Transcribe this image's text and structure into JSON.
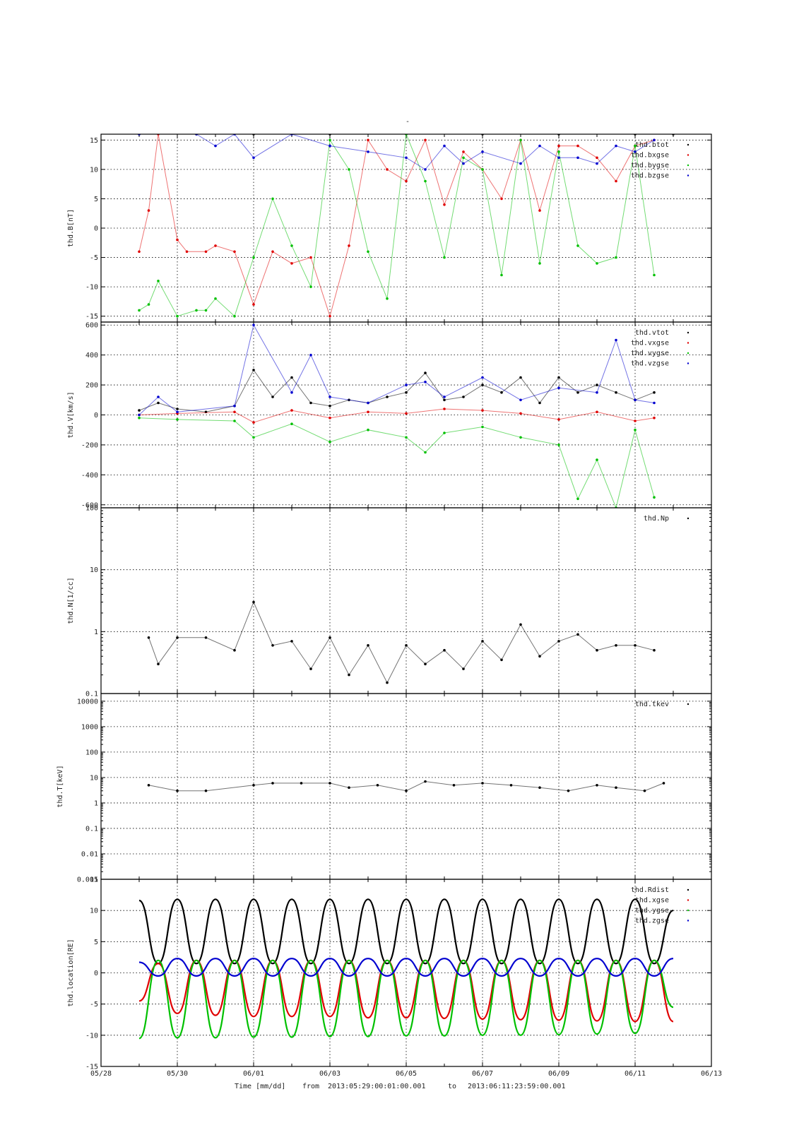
{
  "figure": {
    "title": "-",
    "footer": {
      "xlabel": "Time [mm/dd]",
      "from_label": "from",
      "from_value": "2013:05:29:00:01:00.001",
      "to_label": "to",
      "to_value": "2013:06:11:23:59:00.001"
    }
  },
  "chart_data": [
    {
      "type": "scatter",
      "ylabel": "thd.B[nT]",
      "xlim": [
        "05/28",
        "06/13"
      ],
      "ylim": [
        -16,
        16
      ],
      "yscale": "linear",
      "grid": true,
      "legend_position": "top-right",
      "x_ticks": [
        "05/28",
        "05/30",
        "06/01",
        "06/03",
        "06/05",
        "06/07",
        "06/09",
        "06/11",
        "06/13"
      ],
      "y_ticks": [
        -15,
        -10,
        -5,
        0,
        5,
        10,
        15
      ],
      "series": [
        {
          "name": "thd.btot",
          "color": "#000000",
          "x": [
            "05/29 00:00",
            "05/30 12:00",
            "06/01 00:00",
            "06/03 00:00",
            "06/05 00:00",
            "06/07 00:00",
            "06/09 00:00",
            "06/11 00:00",
            "06/12 00:00"
          ],
          "y": [
            16,
            16,
            16,
            16,
            16,
            16,
            16,
            16,
            16
          ]
        },
        {
          "name": "thd.bxgse",
          "color": "#e00000",
          "x": [
            "05/29 00:00",
            "05/29 06:00",
            "05/29 12:00",
            "05/30 00:00",
            "05/30 06:00",
            "05/30 18:00",
            "05/31 00:00",
            "05/31 12:00",
            "06/01 00:00",
            "06/01 12:00",
            "06/02 00:00",
            "06/02 12:00",
            "06/03 00:00",
            "06/03 12:00",
            "06/04 00:00",
            "06/04 12:00",
            "06/05 00:00",
            "06/05 12:00",
            "06/06 00:00",
            "06/06 12:00",
            "06/07 00:00",
            "06/07 12:00",
            "06/08 00:00",
            "06/08 12:00",
            "06/09 00:00",
            "06/09 12:00",
            "06/10 00:00",
            "06/10 12:00",
            "06/11 00:00",
            "06/11 12:00"
          ],
          "y": [
            -4,
            3,
            16,
            -2,
            -4,
            -4,
            -3,
            -4,
            -13,
            -4,
            -6,
            -5,
            -15,
            -3,
            15,
            10,
            8,
            15,
            4,
            13,
            10,
            5,
            15,
            3,
            14,
            14,
            12,
            8,
            14,
            15
          ]
        },
        {
          "name": "thd.bygse",
          "color": "#00c000",
          "x": [
            "05/29 00:00",
            "05/29 06:00",
            "05/29 12:00",
            "05/30 00:00",
            "05/30 12:00",
            "05/30 18:00",
            "05/31 00:00",
            "05/31 12:00",
            "06/01 00:00",
            "06/01 12:00",
            "06/02 00:00",
            "06/02 12:00",
            "06/03 00:00",
            "06/03 12:00",
            "06/04 00:00",
            "06/04 12:00",
            "06/05 00:00",
            "06/05 12:00",
            "06/06 00:00",
            "06/06 12:00",
            "06/07 00:00",
            "06/07 12:00",
            "06/08 00:00",
            "06/08 12:00",
            "06/09 00:00",
            "06/09 12:00",
            "06/10 00:00",
            "06/10 12:00",
            "06/11 00:00",
            "06/11 12:00"
          ],
          "y": [
            -14,
            -13,
            -9,
            -15,
            -14,
            -14,
            -12,
            -15,
            -5,
            5,
            -3,
            -10,
            15,
            10,
            -4,
            -12,
            16,
            8,
            -5,
            12,
            10,
            -8,
            15,
            -6,
            13,
            -3,
            -6,
            -5,
            14,
            -8
          ]
        },
        {
          "name": "thd.bzgse",
          "color": "#0000d0",
          "x": [
            "05/29 00:00",
            "05/30 12:00",
            "05/31 00:00",
            "05/31 12:00",
            "06/01 00:00",
            "06/02 00:00",
            "06/03 00:00",
            "06/04 00:00",
            "06/05 00:00",
            "06/05 12:00",
            "06/06 00:00",
            "06/06 12:00",
            "06/07 00:00",
            "06/08 00:00",
            "06/08 12:00",
            "06/09 00:00",
            "06/09 12:00",
            "06/10 00:00",
            "06/10 12:00",
            "06/11 00:00",
            "06/11 12:00"
          ],
          "y": [
            16,
            16,
            14,
            16,
            12,
            16,
            14,
            13,
            12,
            10,
            14,
            11,
            13,
            11,
            14,
            12,
            12,
            11,
            14,
            13,
            15
          ]
        }
      ]
    },
    {
      "type": "scatter",
      "ylabel": "thd.V[km/s]",
      "xlim": [
        "05/28",
        "06/13"
      ],
      "ylim": [
        -620,
        620
      ],
      "yscale": "linear",
      "grid": true,
      "legend_position": "top-right",
      "x_ticks": [
        "05/28",
        "05/30",
        "06/01",
        "06/03",
        "06/05",
        "06/07",
        "06/09",
        "06/11",
        "06/13"
      ],
      "y_ticks": [
        -600,
        -400,
        -200,
        0,
        200,
        400,
        600
      ],
      "series": [
        {
          "name": "thd.vtot",
          "color": "#000000",
          "x": [
            "05/29 00:00",
            "05/29 12:00",
            "05/30 00:00",
            "05/30 18:00",
            "05/31 12:00",
            "06/01 00:00",
            "06/01 12:00",
            "06/02 00:00",
            "06/02 12:00",
            "06/03 00:00",
            "06/03 12:00",
            "06/04 00:00",
            "06/04 12:00",
            "06/05 00:00",
            "06/05 12:00",
            "06/06 00:00",
            "06/06 12:00",
            "06/07 00:00",
            "06/07 12:00",
            "06/08 00:00",
            "06/08 12:00",
            "06/09 00:00",
            "06/09 12:00",
            "06/10 00:00",
            "06/10 12:00",
            "06/11 00:00",
            "06/11 12:00"
          ],
          "y": [
            30,
            80,
            40,
            20,
            60,
            300,
            120,
            250,
            80,
            60,
            100,
            80,
            120,
            150,
            280,
            100,
            120,
            200,
            150,
            250,
            80,
            250,
            150,
            200,
            150,
            100,
            150
          ]
        },
        {
          "name": "thd.vxgse",
          "color": "#e00000",
          "x": [
            "05/29 00:00",
            "05/30 00:00",
            "05/31 12:00",
            "06/01 00:00",
            "06/02 00:00",
            "06/03 00:00",
            "06/04 00:00",
            "06/05 00:00",
            "06/06 00:00",
            "06/07 00:00",
            "06/08 00:00",
            "06/09 00:00",
            "06/10 00:00",
            "06/11 00:00",
            "06/11 12:00"
          ],
          "y": [
            0,
            10,
            20,
            -50,
            30,
            -20,
            20,
            10,
            40,
            30,
            10,
            -30,
            20,
            -40,
            -20
          ]
        },
        {
          "name": "thd.vygse",
          "color": "#00c000",
          "x": [
            "05/29 00:00",
            "05/30 00:00",
            "05/31 12:00",
            "06/01 00:00",
            "06/02 00:00",
            "06/03 00:00",
            "06/04 00:00",
            "06/05 00:00",
            "06/05 12:00",
            "06/06 00:00",
            "06/07 00:00",
            "06/08 00:00",
            "06/09 00:00",
            "06/09 12:00",
            "06/10 00:00",
            "06/10 12:00",
            "06/11 00:00",
            "06/11 12:00"
          ],
          "y": [
            -20,
            -30,
            -40,
            -150,
            -60,
            -180,
            -100,
            -150,
            -250,
            -120,
            -80,
            -150,
            -200,
            -560,
            -300,
            -620,
            -100,
            -550
          ]
        },
        {
          "name": "thd.vzgse",
          "color": "#0000d0",
          "x": [
            "05/29 00:00",
            "05/29 12:00",
            "05/30 00:00",
            "05/31 12:00",
            "06/01 00:00",
            "06/02 00:00",
            "06/02 12:00",
            "06/03 00:00",
            "06/04 00:00",
            "06/05 00:00",
            "06/05 12:00",
            "06/06 00:00",
            "06/07 00:00",
            "06/08 00:00",
            "06/09 00:00",
            "06/10 00:00",
            "06/10 12:00",
            "06/11 00:00",
            "06/11 12:00"
          ],
          "y": [
            0,
            120,
            20,
            60,
            600,
            150,
            400,
            120,
            80,
            200,
            220,
            120,
            250,
            100,
            180,
            150,
            500,
            100,
            80
          ]
        }
      ]
    },
    {
      "type": "scatter",
      "ylabel": "thd.N[1/cc]",
      "xlim": [
        "05/28",
        "06/13"
      ],
      "ylim": [
        0.1,
        100
      ],
      "yscale": "log",
      "grid": true,
      "legend_position": "top-right",
      "x_ticks": [
        "05/28",
        "05/30",
        "06/01",
        "06/03",
        "06/05",
        "06/07",
        "06/09",
        "06/11",
        "06/13"
      ],
      "y_ticks": [
        0.1,
        1,
        10,
        100
      ],
      "series": [
        {
          "name": "thd.Np",
          "color": "#000000",
          "x": [
            "05/29 06:00",
            "05/29 12:00",
            "05/30 00:00",
            "05/30 18:00",
            "05/31 12:00",
            "06/01 00:00",
            "06/01 12:00",
            "06/02 00:00",
            "06/02 12:00",
            "06/03 00:00",
            "06/03 12:00",
            "06/04 00:00",
            "06/04 12:00",
            "06/05 00:00",
            "06/05 12:00",
            "06/06 00:00",
            "06/06 12:00",
            "06/07 00:00",
            "06/07 12:00",
            "06/08 00:00",
            "06/08 12:00",
            "06/09 00:00",
            "06/09 12:00",
            "06/10 00:00",
            "06/10 12:00",
            "06/11 00:00",
            "06/11 12:00"
          ],
          "y": [
            0.8,
            0.3,
            0.8,
            0.8,
            0.5,
            3,
            0.6,
            0.7,
            0.25,
            0.8,
            0.2,
            0.6,
            0.15,
            0.6,
            0.3,
            0.5,
            0.25,
            0.7,
            0.35,
            1.3,
            0.4,
            0.7,
            0.9,
            0.5,
            0.6,
            0.6,
            0.5
          ]
        }
      ]
    },
    {
      "type": "scatter",
      "ylabel": "thd.T[keV]",
      "xlim": [
        "05/28",
        "06/13"
      ],
      "ylim": [
        0.001,
        20000
      ],
      "yscale": "log",
      "grid": true,
      "legend_position": "top-right",
      "x_ticks": [
        "05/28",
        "05/30",
        "06/01",
        "06/03",
        "06/05",
        "06/07",
        "06/09",
        "06/11",
        "06/13"
      ],
      "y_ticks": [
        0.001,
        0.01,
        0.1,
        1,
        10,
        100,
        1000,
        10000
      ],
      "series": [
        {
          "name": "thd.tkev",
          "color": "#000000",
          "x": [
            "05/29 06:00",
            "05/30 00:00",
            "05/30 18:00",
            "06/01 00:00",
            "06/01 12:00",
            "06/02 06:00",
            "06/03 00:00",
            "06/03 12:00",
            "06/04 06:00",
            "06/05 00:00",
            "06/05 12:00",
            "06/06 06:00",
            "06/07 00:00",
            "06/07 18:00",
            "06/08 12:00",
            "06/09 06:00",
            "06/10 00:00",
            "06/10 12:00",
            "06/11 06:00",
            "06/11 18:00"
          ],
          "y": [
            5,
            3,
            3,
            5,
            6,
            6,
            6,
            4,
            5,
            3,
            7,
            5,
            6,
            5,
            4,
            3,
            5,
            4,
            3,
            6
          ]
        }
      ]
    },
    {
      "type": "line",
      "ylabel": "thd.location[RE]",
      "xlim": [
        "05/28",
        "06/13"
      ],
      "ylim": [
        -15,
        15
      ],
      "yscale": "linear",
      "grid": true,
      "legend_position": "top-right",
      "x_ticks": [
        "05/28",
        "05/30",
        "06/01",
        "06/03",
        "06/05",
        "06/07",
        "06/09",
        "06/11",
        "06/13"
      ],
      "y_ticks": [
        -15,
        -10,
        -5,
        0,
        5,
        10,
        15
      ],
      "series": [
        {
          "name": "thd.Rdist",
          "color": "#000000",
          "x": [
            "05/29 00:00",
            "05/29 12:00",
            "05/30 00:00",
            "05/30 12:00",
            "05/31 00:00",
            "05/31 12:00",
            "06/01 00:00",
            "06/01 12:00",
            "06/02 00:00",
            "06/02 12:00",
            "06/03 00:00",
            "06/03 12:00",
            "06/04 00:00",
            "06/04 12:00",
            "06/05 00:00",
            "06/05 12:00",
            "06/06 00:00",
            "06/06 12:00",
            "06/07 00:00",
            "06/07 12:00",
            "06/08 00:00",
            "06/08 12:00",
            "06/09 00:00",
            "06/09 12:00",
            "06/10 00:00",
            "06/10 12:00",
            "06/11 00:00",
            "06/11 12:00",
            "06/12 00:00"
          ],
          "y": [
            11.6,
            1.5,
            11.8,
            1.5,
            11.8,
            1.5,
            11.8,
            1.5,
            11.8,
            1.5,
            11.8,
            1.5,
            11.8,
            1.5,
            11.8,
            1.5,
            11.8,
            1.5,
            11.8,
            1.5,
            11.8,
            1.5,
            11.8,
            1.5,
            11.8,
            1.5,
            11.8,
            1.5,
            10
          ]
        },
        {
          "name": "thd.xgse",
          "color": "#e00000",
          "x": [
            "05/29 00:00",
            "05/29 12:00",
            "05/30 00:00",
            "05/30 12:00",
            "05/31 00:00",
            "05/31 12:00",
            "06/01 00:00",
            "06/01 12:00",
            "06/02 00:00",
            "06/02 12:00",
            "06/03 00:00",
            "06/03 12:00",
            "06/04 00:00",
            "06/04 12:00",
            "06/05 00:00",
            "06/05 12:00",
            "06/06 00:00",
            "06/06 12:00",
            "06/07 00:00",
            "06/07 12:00",
            "06/08 00:00",
            "06/08 12:00",
            "06/09 00:00",
            "06/09 12:00",
            "06/10 00:00",
            "06/10 12:00",
            "06/11 00:00",
            "06/11 12:00",
            "06/12 00:00"
          ],
          "y": [
            -4.5,
            1.5,
            -6.5,
            2,
            -6.8,
            2,
            -7,
            2,
            -7,
            2,
            -7,
            2,
            -7.2,
            2,
            -7.2,
            2,
            -7.3,
            2,
            -7.4,
            2,
            -7.5,
            2,
            -7.6,
            2,
            -7.7,
            2,
            -7.8,
            2,
            -7.8
          ]
        },
        {
          "name": "thd.ygse",
          "color": "#00c000",
          "x": [
            "05/29 00:00",
            "05/29 12:00",
            "05/30 00:00",
            "05/30 12:00",
            "05/31 00:00",
            "05/31 12:00",
            "06/01 00:00",
            "06/01 12:00",
            "06/02 00:00",
            "06/02 12:00",
            "06/03 00:00",
            "06/03 12:00",
            "06/04 00:00",
            "06/04 12:00",
            "06/05 00:00",
            "06/05 12:00",
            "06/06 00:00",
            "06/06 12:00",
            "06/07 00:00",
            "06/07 12:00",
            "06/08 00:00",
            "06/08 12:00",
            "06/09 00:00",
            "06/09 12:00",
            "06/10 00:00",
            "06/10 12:00",
            "06/11 00:00",
            "06/11 12:00",
            "06/12 00:00"
          ],
          "y": [
            -10.5,
            2,
            -10.4,
            2,
            -10.4,
            2,
            -10.3,
            2,
            -10.3,
            2,
            -10.2,
            2,
            -10.2,
            2,
            -10.1,
            2,
            -10.1,
            2,
            -10,
            2,
            -10,
            2,
            -9.9,
            2,
            -9.8,
            2,
            -9.7,
            2,
            -5.5
          ]
        },
        {
          "name": "thd.zgse",
          "color": "#0000d0",
          "x": [
            "05/29 00:00",
            "05/29 12:00",
            "05/30 00:00",
            "05/30 12:00",
            "05/31 00:00",
            "05/31 12:00",
            "06/01 00:00",
            "06/01 12:00",
            "06/02 00:00",
            "06/02 12:00",
            "06/03 00:00",
            "06/03 12:00",
            "06/04 00:00",
            "06/04 12:00",
            "06/05 00:00",
            "06/05 12:00",
            "06/06 00:00",
            "06/06 12:00",
            "06/07 00:00",
            "06/07 12:00",
            "06/08 00:00",
            "06/08 12:00",
            "06/09 00:00",
            "06/09 12:00",
            "06/10 00:00",
            "06/10 12:00",
            "06/11 00:00",
            "06/11 12:00",
            "06/12 00:00"
          ],
          "y": [
            1.7,
            -0.5,
            2.3,
            -0.5,
            2.3,
            -0.5,
            2.3,
            -0.5,
            2.3,
            -0.5,
            2.3,
            -0.5,
            2.3,
            -0.5,
            2.3,
            -0.5,
            2.3,
            -0.5,
            2.3,
            -0.5,
            2.3,
            -0.5,
            2.3,
            -0.5,
            2.3,
            -0.5,
            2.3,
            -0.5,
            2.3
          ]
        }
      ]
    }
  ]
}
